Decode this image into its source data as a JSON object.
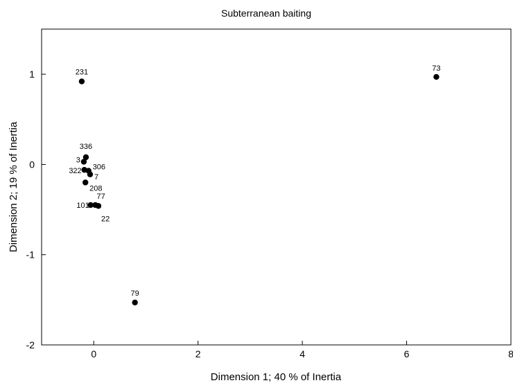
{
  "chart_data": {
    "type": "scatter",
    "title": "Subterranean baiting",
    "xlabel": "Dimension 1; 40 % of Inertia",
    "ylabel": "Dimension 2; 19 % of Inertia",
    "xlim": [
      -1,
      8
    ],
    "ylim": [
      -2,
      1.5
    ],
    "x_ticks": [
      0,
      2,
      4,
      6,
      8
    ],
    "y_ticks": [
      -2,
      -1,
      0,
      1
    ],
    "x_tick_labels": [
      "0",
      "2",
      "4",
      "6",
      "8"
    ],
    "y_tick_labels": [
      "-2",
      "-1",
      "0",
      "1"
    ],
    "grid": false,
    "legend": "none",
    "marker_color": "#000000",
    "points": [
      {
        "label": "231",
        "x": -0.23,
        "y": 0.92
      },
      {
        "label": "73",
        "x": 6.57,
        "y": 0.97
      },
      {
        "label": "336",
        "x": -0.15,
        "y": 0.08
      },
      {
        "label": "3",
        "x": -0.19,
        "y": 0.03
      },
      {
        "label": "322",
        "x": -0.18,
        "y": -0.06
      },
      {
        "label": "306",
        "x": -0.1,
        "y": -0.07
      },
      {
        "label": "7",
        "x": -0.07,
        "y": -0.11
      },
      {
        "label": "208",
        "x": -0.16,
        "y": -0.2
      },
      {
        "label": "101",
        "x": -0.06,
        "y": -0.45
      },
      {
        "label": "77",
        "x": 0.03,
        "y": -0.45
      },
      {
        "label": "22",
        "x": 0.09,
        "y": -0.46
      },
      {
        "label": "79",
        "x": 0.79,
        "y": -1.53
      }
    ]
  }
}
